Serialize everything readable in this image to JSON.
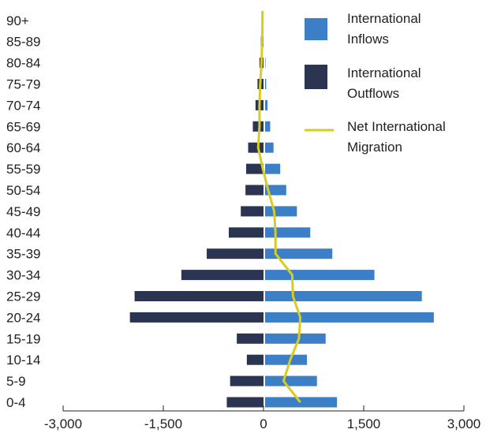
{
  "colors": {
    "inflow": "#3d7fc6",
    "outflow": "#2b3551",
    "net": "#d8cb21",
    "axis": "#222222",
    "text": "#222222"
  },
  "legend": [
    {
      "key": "inflow",
      "line1": "International",
      "line2": "Inflows",
      "icon": "square-swatch"
    },
    {
      "key": "outflow",
      "line1": "International",
      "line2": "Outflows",
      "icon": "square-swatch"
    },
    {
      "key": "net",
      "line1": "Net International",
      "line2": "Migration",
      "icon": "line-swatch"
    }
  ],
  "chart_data": {
    "type": "bar",
    "orientation": "horizontal",
    "layout": "population-pyramid",
    "categories": [
      "0-4",
      "5-9",
      "10-14",
      "15-19",
      "20-24",
      "25-29",
      "30-34",
      "35-39",
      "40-44",
      "45-49",
      "50-54",
      "55-59",
      "60-64",
      "65-69",
      "70-74",
      "75-79",
      "80-84",
      "85-89",
      "90+"
    ],
    "xlim": [
      -3000,
      3000
    ],
    "xticks": [
      -3000,
      -1500,
      0,
      1500,
      3000
    ],
    "xtick_labels": [
      "-3,000",
      "-1,500",
      "0",
      "1,500",
      "3,000"
    ],
    "series": [
      {
        "name": "International Inflows",
        "type": "bar",
        "color": "#3d7fc6",
        "values": [
          1100,
          800,
          650,
          930,
          2550,
          2370,
          1660,
          1030,
          700,
          500,
          340,
          250,
          150,
          100,
          60,
          40,
          30,
          20,
          15
        ]
      },
      {
        "name": "International Outflows",
        "type": "bar",
        "color": "#2b3551",
        "values": [
          -550,
          -500,
          -250,
          -400,
          -2000,
          -1930,
          -1230,
          -850,
          -520,
          -340,
          -270,
          -260,
          -230,
          -160,
          -120,
          -90,
          -60,
          -40,
          -30
        ]
      },
      {
        "name": "Net International Migration",
        "type": "line",
        "color": "#d8cb21",
        "values": [
          550,
          300,
          400,
          530,
          550,
          440,
          430,
          180,
          180,
          160,
          70,
          -10,
          -80,
          -60,
          -60,
          -50,
          -30,
          -20,
          -15
        ]
      }
    ],
    "title": "",
    "xlabel": "",
    "ylabel": "",
    "grid": false,
    "legend_position": "top-right"
  }
}
